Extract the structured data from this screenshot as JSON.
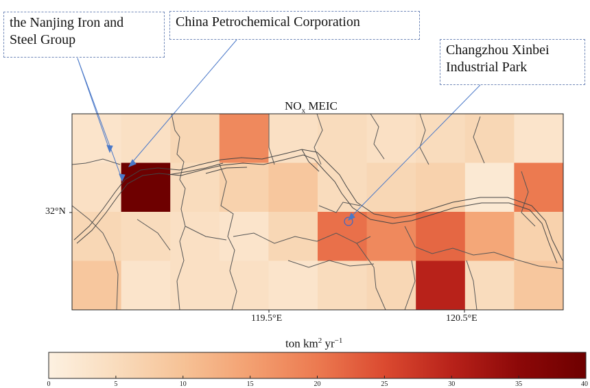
{
  "callouts": {
    "nanjing": [
      "the Nanjing Iron and",
      "Steel Group"
    ],
    "petrochemical": "China Petrochemical Corporation",
    "changzhou": [
      "Changzhou Xinbei",
      "Industrial Park"
    ]
  },
  "map": {
    "title_main": "NO",
    "title_sub": "x",
    "title_rest": "MEIC",
    "lat_label": "32°N",
    "lon_labels": [
      "119.5°E",
      "120.5°E"
    ],
    "grid": {
      "rows": 4,
      "cols": 10,
      "values": [
        [
          3,
          4,
          6,
          18,
          4,
          5,
          4,
          5,
          6,
          3
        ],
        [
          4,
          40,
          5,
          7,
          9,
          5,
          6,
          7,
          2,
          20
        ],
        [
          6,
          5,
          4,
          3,
          6,
          21,
          18,
          22,
          14,
          7
        ],
        [
          9,
          3,
          4,
          4,
          3,
          5,
          6,
          30,
          5,
          9
        ]
      ]
    }
  },
  "colorbar": {
    "unit_main": "ton km",
    "unit_sup1": "2",
    "unit_mid": " yr",
    "unit_sup2": "−1",
    "ticks": [
      "0",
      "5",
      "10",
      "15",
      "20",
      "25",
      "30",
      "35",
      "40"
    ],
    "min": 0,
    "max": 40,
    "colors": [
      "#fdf1e1",
      "#f9dcbd",
      "#f6c296",
      "#f3a071",
      "#ec7a50",
      "#db4a30",
      "#b8221a",
      "#8c0808",
      "#6e0000"
    ]
  }
}
